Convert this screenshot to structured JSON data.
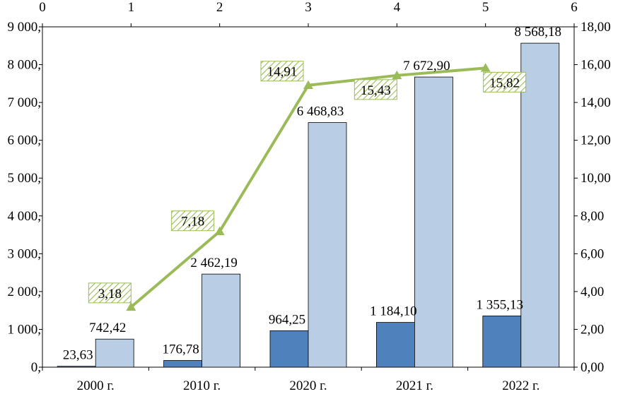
{
  "chart_data": {
    "type": "bar",
    "categories": [
      "2000 г.",
      "2010 г.",
      "2020 г.",
      "2021 г.",
      "2022 г."
    ],
    "series": [
      {
        "type": "bar",
        "axis": "left",
        "color": "#4f81bd",
        "values": [
          23.63,
          176.78,
          964.25,
          1184.1,
          1355.13
        ],
        "labels": [
          "23,63",
          "176,78",
          "964,25",
          "1 184,10",
          "1 355,13"
        ]
      },
      {
        "type": "bar",
        "axis": "left",
        "color": "#b9cde5",
        "values": [
          742.42,
          2462.19,
          6468.83,
          7672.9,
          8568.18
        ],
        "labels": [
          "742,42",
          "2 462,19",
          "6 468,83",
          "7 672,90",
          "8 568,18"
        ]
      },
      {
        "type": "line",
        "axis": "right",
        "color": "#9bbb59",
        "x": [
          1,
          2,
          3,
          4,
          5
        ],
        "values": [
          3.18,
          7.18,
          14.91,
          15.43,
          15.82
        ],
        "labels": [
          "3,18",
          "7,18",
          "14,91",
          "15,43",
          "15,82"
        ]
      }
    ],
    "left_axis": {
      "range": [
        0,
        9000
      ],
      "ticks": [
        "0,",
        "1 000,",
        "2 000,",
        "3 000,",
        "4 000,",
        "5 000,",
        "6 000,",
        "7 000,",
        "8 000,",
        "9 000,"
      ]
    },
    "right_axis": {
      "range": [
        0,
        18
      ],
      "ticks": [
        "0,00",
        "2,00",
        "4,00",
        "6,00",
        "8,00",
        "10,00",
        "12,00",
        "14,00",
        "16,00",
        "18,00"
      ]
    },
    "top_axis": {
      "range": [
        0,
        6
      ],
      "ticks": [
        "0",
        "1",
        "2",
        "3",
        "4",
        "5",
        "6"
      ]
    },
    "grid": false,
    "legend": "none"
  }
}
